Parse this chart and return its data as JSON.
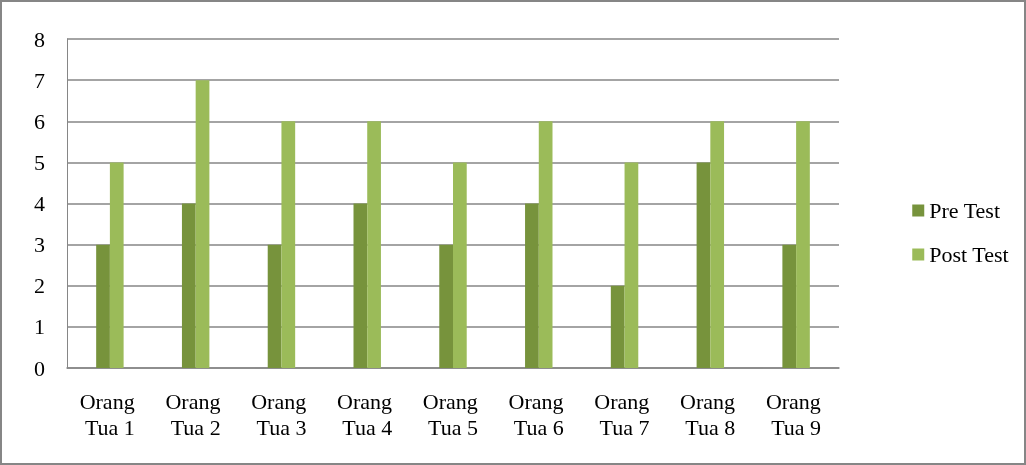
{
  "chart_data": {
    "type": "bar",
    "categories": [
      "Orang Tua 1",
      "Orang Tua 2",
      "Orang Tua 3",
      "Orang Tua 4",
      "Orang Tua 5",
      "Orang Tua 6",
      "Orang Tua 7",
      "Orang Tua 8",
      "Orang Tua 9"
    ],
    "series": [
      {
        "name": "Pre Test",
        "color": "#77933c",
        "values": [
          3,
          4,
          3,
          4,
          3,
          4,
          2,
          5,
          3
        ]
      },
      {
        "name": "Post Test",
        "color": "#9bbb59",
        "values": [
          5,
          7,
          6,
          6,
          5,
          6,
          5,
          6,
          6
        ]
      }
    ],
    "ylim": [
      0,
      8
    ],
    "yticks": [
      0,
      1,
      2,
      3,
      4,
      5,
      6,
      7,
      8
    ],
    "grid": "y",
    "legend": "right"
  }
}
